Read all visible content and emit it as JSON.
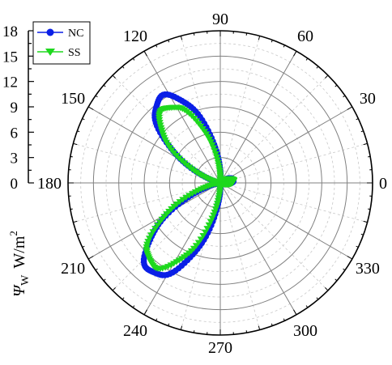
{
  "chart_data": {
    "type": "polar",
    "axis_title": {
      "symbol": "Ψ",
      "subscript": "W",
      "unit": "W/m",
      "unit_superscript": "2"
    },
    "radial_axis": {
      "range": [
        0,
        18
      ],
      "major_ticks": [
        0,
        3,
        6,
        9,
        12,
        15,
        18
      ],
      "tick_labels": [
        "0",
        "3",
        "6",
        "9",
        "12",
        "15",
        "18"
      ],
      "grid_circles": [
        3,
        6,
        9,
        12,
        15,
        18
      ],
      "minor_grid_circles": [
        1.5,
        4.5,
        7.5,
        10.5,
        13.5,
        16.5
      ]
    },
    "angular_axis": {
      "unit": "degrees",
      "direction": "counterclockwise",
      "zero_at": "right",
      "ticks": [
        0,
        30,
        60,
        90,
        120,
        150,
        180,
        210,
        240,
        270,
        300,
        330
      ],
      "tick_labels": [
        "0",
        "30",
        "60",
        "90",
        "120",
        "150",
        "180",
        "210",
        "240",
        "270",
        "300",
        "330"
      ]
    },
    "grid": true,
    "legend": {
      "position": "top-left",
      "entries": [
        "NC",
        "SS"
      ]
    },
    "series": [
      {
        "name": "NC",
        "color": "#0a1fe6",
        "marker": "circle",
        "lobes": [
          {
            "center_deg": 125,
            "peak": 12.3,
            "half_width_deg": 45
          },
          {
            "center_deg": 232,
            "peak": 13.4,
            "half_width_deg": 45
          },
          {
            "center_deg": 12,
            "peak": 1.6,
            "half_width_deg": 45
          }
        ]
      },
      {
        "name": "SS",
        "color": "#1ed81e",
        "marker": "triangle-down",
        "lobes": [
          {
            "center_deg": 127,
            "peak": 11.0,
            "half_width_deg": 45
          },
          {
            "center_deg": 230,
            "peak": 12.6,
            "half_width_deg": 45
          },
          {
            "center_deg": 10,
            "peak": 1.6,
            "half_width_deg": 45
          }
        ]
      }
    ]
  }
}
